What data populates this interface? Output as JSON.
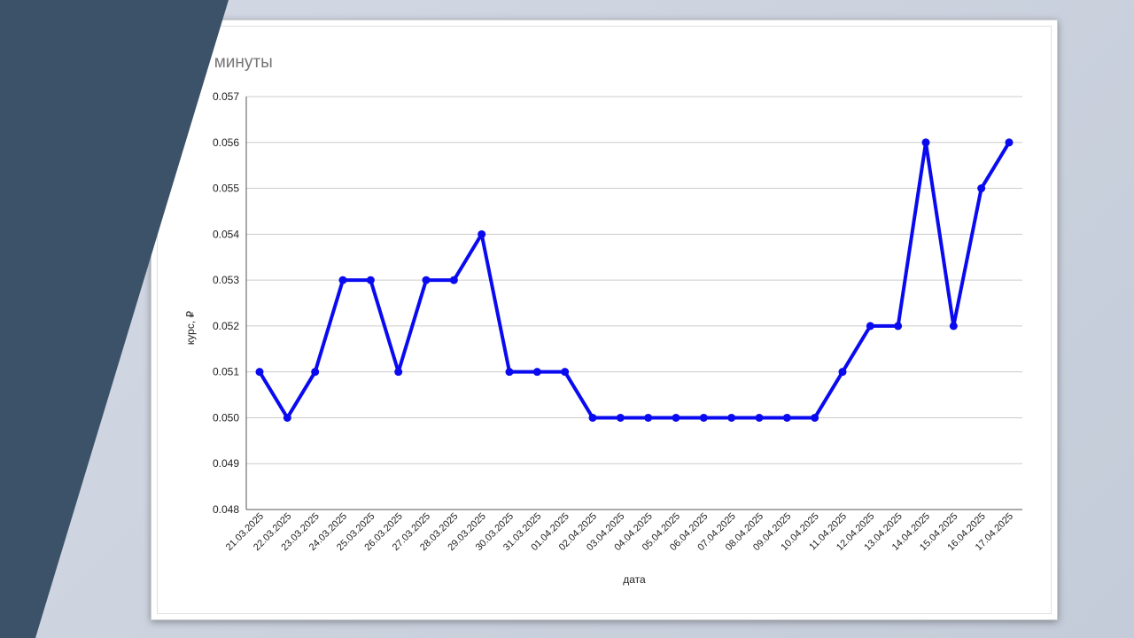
{
  "colors": {
    "line": "#0a0af0",
    "panel": "#3b5269",
    "grid": "#cccccc",
    "background": "#c9d0dc"
  },
  "chart_data": {
    "type": "line",
    "title": "Курс минуты",
    "xlabel": "дата",
    "ylabel": "курс, ₽",
    "ylim": [
      0.048,
      0.057
    ],
    "yticks": [
      "0.048",
      "0.049",
      "0.050",
      "0.051",
      "0.052",
      "0.053",
      "0.054",
      "0.055",
      "0.056",
      "0.057"
    ],
    "grid": true,
    "categories": [
      "21.03.2025",
      "22.03.2025",
      "23.03.2025",
      "24.03.2025",
      "25.03.2025",
      "26.03.2025",
      "27.03.2025",
      "28.03.2025",
      "29.03.2025",
      "30.03.2025",
      "31.03.2025",
      "01.04.2025",
      "02.04.2025",
      "03.04.2025",
      "04.04.2025",
      "05.04.2025",
      "06.04.2025",
      "07.04.2025",
      "08.04.2025",
      "09.04.2025",
      "10.04.2025",
      "11.04.2025",
      "12.04.2025",
      "13.04.2025",
      "14.04.2025",
      "15.04.2025",
      "16.04.2025",
      "17.04.2025"
    ],
    "series": [
      {
        "values": [
          0.051,
          0.05,
          0.051,
          0.053,
          0.053,
          0.051,
          0.053,
          0.053,
          0.054,
          0.051,
          0.051,
          0.051,
          0.05,
          0.05,
          0.05,
          0.05,
          0.05,
          0.05,
          0.05,
          0.05,
          0.05,
          0.051,
          0.052,
          0.052,
          0.056,
          0.052,
          0.055,
          0.056
        ]
      }
    ]
  }
}
